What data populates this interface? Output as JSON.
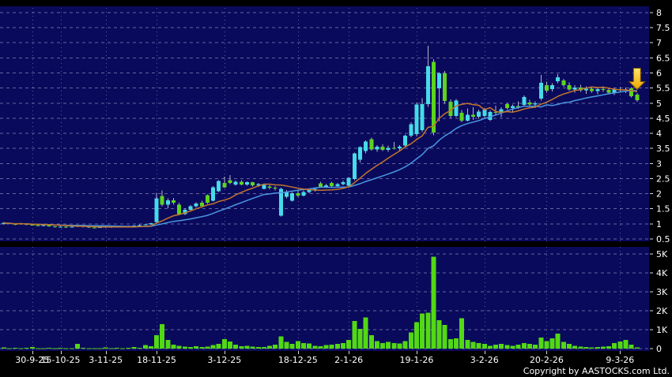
{
  "copyright": "Copyright by AASTOCKS.com Ltd.",
  "colors": {
    "background": "#000000",
    "panel": "#0a0a5c",
    "grid_h": "#a0a0cc",
    "grid_v": "#9090c0",
    "up_candle": "#45dbe8",
    "down_candle": "#5cd41e",
    "wick": "#b4b4c8",
    "volume_bar": "#52d815",
    "ma_fast": "#c4762a",
    "ma_slow": "#4a97e0",
    "axis_text": "#ffffff",
    "tick": "#d8d8e8",
    "arrow_fill_top": "#ffe768",
    "arrow_fill_bottom": "#eda400",
    "arrow_outline": "#7a5200"
  },
  "chart_data": {
    "type": "candlestick+volume",
    "price_axis": {
      "min": 0.5,
      "max": 8,
      "step": 0.5,
      "labels": [
        "8",
        "7.5",
        "7",
        "6.5",
        "6",
        "5.5",
        "5",
        "4.5",
        "4",
        "3.5",
        "3",
        "2.5",
        "2",
        "1.5",
        "1",
        "0.5"
      ]
    },
    "volume_axis": {
      "ticks": [
        {
          "value": 5000,
          "label": "5K"
        },
        {
          "value": 4000,
          "label": "4K"
        },
        {
          "value": 3000,
          "label": "3K"
        },
        {
          "value": 2000,
          "label": "2K"
        },
        {
          "value": 1000,
          "label": "1K"
        },
        {
          "value": 0,
          "label": "0"
        }
      ]
    },
    "x_ticks": [
      {
        "index": 5,
        "label": "30-9-25"
      },
      {
        "index": 10,
        "label": "15-10-25"
      },
      {
        "index": 18,
        "label": "3-11-25"
      },
      {
        "index": 27,
        "label": "18-11-25"
      },
      {
        "index": 39,
        "label": "3-12-25"
      },
      {
        "index": 52,
        "label": "18-12-25"
      },
      {
        "index": 61,
        "label": "2-1-26"
      },
      {
        "index": 73,
        "label": "19-1-26"
      },
      {
        "index": 85,
        "label": "3-2-26"
      },
      {
        "index": 96,
        "label": "20-2-26"
      },
      {
        "index": 109,
        "label": "9-3-26"
      }
    ],
    "overlays": [
      {
        "name": "ma-fast",
        "period": 10
      },
      {
        "name": "ma-slow",
        "period": 20
      }
    ],
    "annotation": {
      "shape": "down-arrow",
      "candle_index": 112,
      "tip_price": 5.45
    },
    "candles": [
      [
        1.0,
        1.06,
        0.97,
        1.03,
        60
      ],
      [
        1.03,
        1.05,
        0.99,
        1.0,
        30
      ],
      [
        1.0,
        1.02,
        0.96,
        0.98,
        40
      ],
      [
        0.98,
        1.03,
        0.97,
        1.01,
        25
      ],
      [
        1.01,
        1.02,
        0.95,
        0.97,
        35
      ],
      [
        0.97,
        1.0,
        0.94,
        0.95,
        90
      ],
      [
        0.95,
        0.97,
        0.92,
        0.93,
        20
      ],
      [
        0.93,
        0.97,
        0.92,
        0.96,
        15
      ],
      [
        0.96,
        0.97,
        0.9,
        0.92,
        50
      ],
      [
        0.92,
        0.93,
        0.88,
        0.9,
        30
      ],
      [
        0.9,
        0.93,
        0.88,
        0.91,
        40
      ],
      [
        0.91,
        0.92,
        0.87,
        0.89,
        20
      ],
      [
        0.89,
        0.92,
        0.88,
        0.9,
        15
      ],
      [
        0.9,
        0.95,
        0.89,
        0.93,
        250
      ],
      [
        0.93,
        0.94,
        0.88,
        0.9,
        40
      ],
      [
        0.9,
        0.91,
        0.86,
        0.88,
        30
      ],
      [
        0.88,
        0.9,
        0.85,
        0.87,
        20
      ],
      [
        0.87,
        0.9,
        0.86,
        0.89,
        25
      ],
      [
        0.89,
        0.92,
        0.87,
        0.9,
        60
      ],
      [
        0.9,
        0.91,
        0.87,
        0.89,
        30
      ],
      [
        0.89,
        0.93,
        0.88,
        0.91,
        40
      ],
      [
        0.91,
        0.92,
        0.88,
        0.9,
        25
      ],
      [
        0.9,
        0.94,
        0.89,
        0.92,
        35
      ],
      [
        0.92,
        0.96,
        0.91,
        0.94,
        80
      ],
      [
        0.94,
        0.98,
        0.93,
        0.96,
        50
      ],
      [
        0.96,
        1.0,
        0.95,
        0.98,
        180
      ],
      [
        0.98,
        1.04,
        0.97,
        1.02,
        120
      ],
      [
        1.06,
        2.03,
        1.0,
        1.84,
        700
      ],
      [
        1.92,
        2.1,
        1.58,
        1.64,
        1300
      ],
      [
        1.64,
        1.85,
        1.52,
        1.78,
        450
      ],
      [
        1.78,
        1.86,
        1.64,
        1.7,
        200
      ],
      [
        1.64,
        1.7,
        1.28,
        1.32,
        150
      ],
      [
        1.32,
        1.52,
        1.3,
        1.46,
        100
      ],
      [
        1.46,
        1.62,
        1.42,
        1.58,
        90
      ],
      [
        1.58,
        1.72,
        1.55,
        1.68,
        120
      ],
      [
        1.7,
        1.76,
        1.54,
        1.58,
        80
      ],
      [
        1.95,
        1.98,
        1.66,
        1.7,
        100
      ],
      [
        1.77,
        2.25,
        1.74,
        2.21,
        180
      ],
      [
        2.08,
        2.45,
        2.05,
        2.42,
        250
      ],
      [
        2.36,
        2.56,
        2.18,
        2.21,
        500
      ],
      [
        2.45,
        2.62,
        2.32,
        2.35,
        380
      ],
      [
        2.3,
        2.43,
        2.26,
        2.4,
        200
      ],
      [
        2.4,
        2.44,
        2.27,
        2.3,
        120
      ],
      [
        2.3,
        2.41,
        2.26,
        2.38,
        150
      ],
      [
        2.38,
        2.4,
        2.24,
        2.28,
        100
      ],
      [
        2.28,
        2.35,
        2.23,
        2.32,
        90
      ],
      [
        2.16,
        2.31,
        2.14,
        2.29,
        80
      ],
      [
        2.24,
        2.29,
        2.15,
        2.2,
        140
      ],
      [
        2.2,
        2.25,
        2.11,
        2.18,
        200
      ],
      [
        1.27,
        2.2,
        1.24,
        2.16,
        650
      ],
      [
        1.9,
        2.12,
        1.85,
        2.05,
        350
      ],
      [
        1.77,
        2.06,
        1.74,
        2.02,
        250
      ],
      [
        2.02,
        2.09,
        1.89,
        1.94,
        400
      ],
      [
        1.94,
        2.11,
        1.91,
        2.06,
        300
      ],
      [
        2.06,
        2.17,
        2.01,
        2.12,
        280
      ],
      [
        2.12,
        2.21,
        2.07,
        2.16,
        150
      ],
      [
        2.34,
        2.39,
        2.21,
        2.23,
        120
      ],
      [
        2.23,
        2.33,
        2.19,
        2.28,
        180
      ],
      [
        2.35,
        2.39,
        2.23,
        2.25,
        200
      ],
      [
        2.25,
        2.36,
        2.21,
        2.32,
        250
      ],
      [
        2.32,
        2.43,
        2.27,
        2.38,
        300
      ],
      [
        2.26,
        2.55,
        2.23,
        2.52,
        450
      ],
      [
        2.49,
        3.36,
        2.45,
        3.33,
        1450
      ],
      [
        3.12,
        3.57,
        3.04,
        3.54,
        1050
      ],
      [
        3.41,
        3.76,
        3.34,
        3.72,
        1650
      ],
      [
        3.8,
        3.86,
        3.42,
        3.46,
        700
      ],
      [
        3.46,
        3.61,
        3.39,
        3.55,
        400
      ],
      [
        3.55,
        3.63,
        3.41,
        3.45,
        300
      ],
      [
        3.45,
        3.59,
        3.39,
        3.52,
        350
      ],
      [
        3.52,
        3.71,
        3.46,
        3.5,
        300
      ],
      [
        3.5,
        3.61,
        3.43,
        3.56,
        280
      ],
      [
        3.59,
        3.96,
        3.54,
        3.92,
        400
      ],
      [
        3.92,
        4.36,
        3.87,
        4.3,
        850
      ],
      [
        3.97,
        5.02,
        3.9,
        4.95,
        1400
      ],
      [
        4.11,
        5.16,
        4.04,
        4.97,
        1850
      ],
      [
        4.97,
        6.9,
        4.88,
        6.22,
        1900
      ],
      [
        6.37,
        6.46,
        3.94,
        4.03,
        4850
      ],
      [
        5.49,
        6.02,
        4.4,
        5.98,
        1500
      ],
      [
        5.98,
        6.06,
        4.98,
        5.07,
        1250
      ],
      [
        5.05,
        5.12,
        4.5,
        4.58,
        500
      ],
      [
        4.58,
        5.14,
        4.53,
        5.08,
        550
      ],
      [
        4.68,
        4.77,
        4.37,
        4.42,
        1600
      ],
      [
        4.42,
        4.82,
        4.39,
        4.62,
        450
      ],
      [
        4.62,
        4.86,
        4.44,
        4.55,
        350
      ],
      [
        4.55,
        4.79,
        4.49,
        4.72,
        300
      ],
      [
        4.58,
        4.84,
        4.51,
        4.78,
        250
      ],
      [
        4.45,
        4.76,
        4.4,
        4.71,
        150
      ],
      [
        4.71,
        4.91,
        4.59,
        4.68,
        200
      ],
      [
        4.68,
        4.86,
        4.54,
        4.8,
        250
      ],
      [
        4.97,
        5.01,
        4.78,
        4.84,
        180
      ],
      [
        4.84,
        4.96,
        4.69,
        4.9,
        150
      ],
      [
        4.9,
        5.06,
        4.81,
        4.86,
        200
      ],
      [
        4.94,
        5.25,
        4.87,
        5.2,
        300
      ],
      [
        5.02,
        5.11,
        4.87,
        4.95,
        250
      ],
      [
        4.95,
        5.06,
        4.84,
        5.0,
        200
      ],
      [
        5.15,
        5.93,
        5.08,
        5.67,
        580
      ],
      [
        5.59,
        5.71,
        5.34,
        5.41,
        400
      ],
      [
        5.46,
        5.66,
        5.39,
        5.59,
        550
      ],
      [
        5.72,
        5.96,
        5.66,
        5.85,
        800
      ],
      [
        5.75,
        5.81,
        5.54,
        5.59,
        350
      ],
      [
        5.6,
        5.69,
        5.41,
        5.45,
        250
      ],
      [
        5.45,
        5.59,
        5.34,
        5.52,
        150
      ],
      [
        5.52,
        5.61,
        5.37,
        5.42,
        100
      ],
      [
        5.42,
        5.56,
        5.31,
        5.48,
        80
      ],
      [
        5.48,
        5.53,
        5.35,
        5.4,
        60
      ],
      [
        5.4,
        5.53,
        5.29,
        5.46,
        80
      ],
      [
        5.46,
        5.56,
        5.37,
        5.44,
        100
      ],
      [
        5.44,
        5.51,
        5.29,
        5.35,
        120
      ],
      [
        5.33,
        5.51,
        5.27,
        5.46,
        300
      ],
      [
        5.46,
        5.53,
        5.35,
        5.42,
        380
      ],
      [
        5.42,
        5.51,
        5.33,
        5.45,
        450
      ],
      [
        5.49,
        5.53,
        5.19,
        5.23,
        200
      ],
      [
        5.28,
        5.33,
        5.04,
        5.1,
        60
      ]
    ]
  }
}
